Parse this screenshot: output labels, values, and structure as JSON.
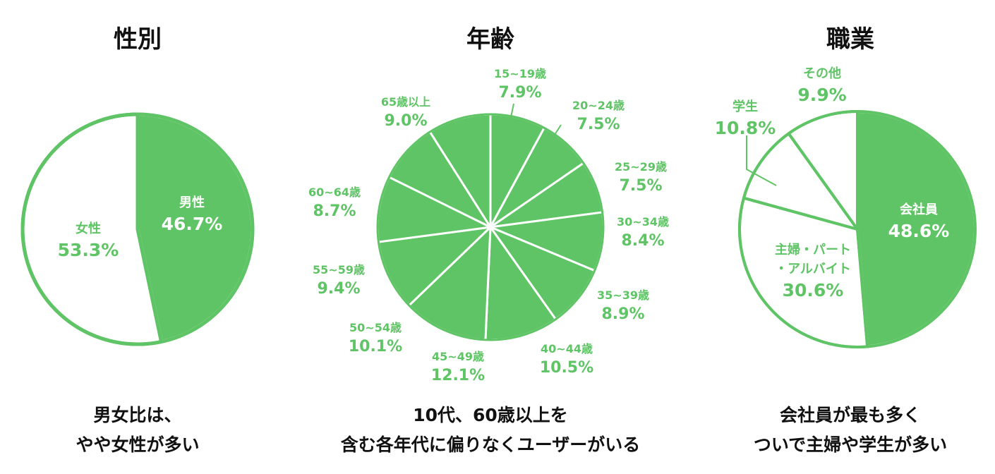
{
  "colors": {
    "green": "#5fc465",
    "white": "#ffffff",
    "text_dark": "#111111"
  },
  "chart_data": [
    {
      "type": "pie",
      "title": "性別",
      "caption": [
        "男女比は、",
        "やや女性が多い"
      ],
      "slices": [
        {
          "label": "男性",
          "value": 46.7,
          "value_text": "46.7%",
          "fill": "green"
        },
        {
          "label": "女性",
          "value": 53.3,
          "value_text": "53.3%",
          "fill": "white"
        }
      ]
    },
    {
      "type": "pie",
      "title": "年齢",
      "caption": [
        "10代、60歳以上を",
        "含む各年代に偏りなくユーザーがいる"
      ],
      "slices": [
        {
          "label": "15~19歳",
          "value": 7.9,
          "value_text": "7.9%",
          "fill": "green"
        },
        {
          "label": "20~24歳",
          "value": 7.5,
          "value_text": "7.5%",
          "fill": "green"
        },
        {
          "label": "25~29歳",
          "value": 7.5,
          "value_text": "7.5%",
          "fill": "green"
        },
        {
          "label": "30~34歳",
          "value": 8.4,
          "value_text": "8.4%",
          "fill": "green"
        },
        {
          "label": "35~39歳",
          "value": 8.9,
          "value_text": "8.9%",
          "fill": "green"
        },
        {
          "label": "40~44歳",
          "value": 10.5,
          "value_text": "10.5%",
          "fill": "green"
        },
        {
          "label": "45~49歳",
          "value": 12.1,
          "value_text": "12.1%",
          "fill": "green"
        },
        {
          "label": "50~54歳",
          "value": 10.1,
          "value_text": "10.1%",
          "fill": "green"
        },
        {
          "label": "55~59歳",
          "value": 9.4,
          "value_text": "9.4%",
          "fill": "green"
        },
        {
          "label": "60~64歳",
          "value": 8.7,
          "value_text": "8.7%",
          "fill": "green"
        },
        {
          "label": "65歳以上",
          "value": 9.0,
          "value_text": "9.0%",
          "fill": "green"
        }
      ]
    },
    {
      "type": "pie",
      "title": "職業",
      "caption": [
        "会社員が最も多く",
        "ついで主婦や学生が多い"
      ],
      "slices": [
        {
          "label": "会社員",
          "value": 48.6,
          "value_text": "48.6%",
          "fill": "green"
        },
        {
          "label": "主婦・パート・アルバイト",
          "label_lines": [
            "主婦・パート",
            "・アルバイト"
          ],
          "value": 30.6,
          "value_text": "30.6%",
          "fill": "white"
        },
        {
          "label": "学生",
          "value": 10.8,
          "value_text": "10.8%",
          "fill": "white"
        },
        {
          "label": "その他",
          "value": 9.9,
          "value_text": "9.9%",
          "fill": "white"
        }
      ]
    }
  ]
}
